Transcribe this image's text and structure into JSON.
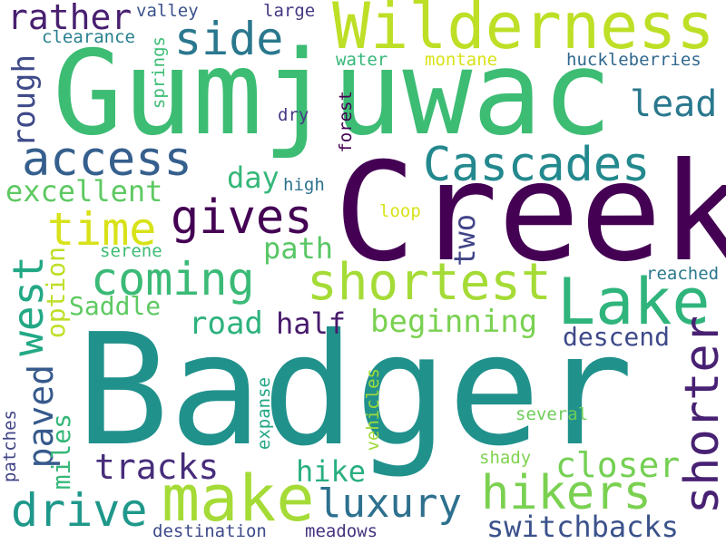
{
  "words": [
    {
      "text": "Badger",
      "color": "#21918c"
    },
    {
      "text": "Creek",
      "color": "#440154"
    },
    {
      "text": "Gumjuwac",
      "color": "#3dbc74"
    },
    {
      "text": "Wilderness",
      "color": "#bddf26"
    },
    {
      "text": "make",
      "color": "#a5db36"
    },
    {
      "text": "Lake",
      "color": "#2fb47c"
    },
    {
      "text": "Cascades",
      "color": "#23898e"
    },
    {
      "text": "shortest",
      "color": "#a5db36"
    },
    {
      "text": "shorter",
      "color": "#482173"
    },
    {
      "text": "hikers",
      "color": "#7ad151"
    },
    {
      "text": "access",
      "color": "#355f8d"
    },
    {
      "text": "gives",
      "color": "#440154"
    },
    {
      "text": "coming",
      "color": "#3aba76"
    },
    {
      "text": "side",
      "color": "#2a788e"
    },
    {
      "text": "drive",
      "color": "#1f988b"
    },
    {
      "text": "time",
      "color": "#d8e219"
    },
    {
      "text": "luxury",
      "color": "#2d708e"
    },
    {
      "text": "west",
      "color": "#22a884"
    },
    {
      "text": "rather",
      "color": "#481f70"
    },
    {
      "text": "lead",
      "color": "#2a788e"
    },
    {
      "text": "beginning",
      "color": "#7ad151"
    },
    {
      "text": "closer",
      "color": "#75d054"
    },
    {
      "text": "switchbacks",
      "color": "#3b528b"
    },
    {
      "text": "tracks",
      "color": "#472d7b"
    },
    {
      "text": "paved",
      "color": "#375a8c"
    },
    {
      "text": "excellent",
      "color": "#5ec962"
    },
    {
      "text": "rough",
      "color": "#3e4a89"
    },
    {
      "text": "road",
      "color": "#2db27d"
    },
    {
      "text": "half",
      "color": "#481a6c"
    },
    {
      "text": "path",
      "color": "#58c765"
    },
    {
      "text": "hike",
      "color": "#29af7f"
    },
    {
      "text": "two",
      "color": "#414487"
    },
    {
      "text": "day",
      "color": "#35b779"
    },
    {
      "text": "Saddle",
      "color": "#5ec962"
    },
    {
      "text": "option",
      "color": "#bddf26"
    },
    {
      "text": "miles",
      "color": "#35b779"
    },
    {
      "text": "descend",
      "color": "#3e4a89"
    },
    {
      "text": "huckleberries",
      "color": "#31688e"
    },
    {
      "text": "valley",
      "color": "#3b528b"
    },
    {
      "text": "large",
      "color": "#443983"
    },
    {
      "text": "clearance",
      "color": "#277f8e"
    },
    {
      "text": "springs",
      "color": "#3dbc74"
    },
    {
      "text": "water",
      "color": "#35b779"
    },
    {
      "text": "montane",
      "color": "#d8e219"
    },
    {
      "text": "dry",
      "color": "#443a83"
    },
    {
      "text": "forest",
      "color": "#440154"
    },
    {
      "text": "high",
      "color": "#2c728e"
    },
    {
      "text": "loop",
      "color": "#d8e219"
    },
    {
      "text": "serene",
      "color": "#3dbc74"
    },
    {
      "text": "reached",
      "color": "#2a788e"
    },
    {
      "text": "several",
      "color": "#6ece58"
    },
    {
      "text": "shady",
      "color": "#7fd34e"
    },
    {
      "text": "expanse",
      "color": "#21a685"
    },
    {
      "text": "vehicles",
      "color": "#a0da39"
    },
    {
      "text": "patches",
      "color": "#414487"
    },
    {
      "text": "destination",
      "color": "#3e4a89"
    },
    {
      "text": "meadows",
      "color": "#46327e"
    }
  ]
}
